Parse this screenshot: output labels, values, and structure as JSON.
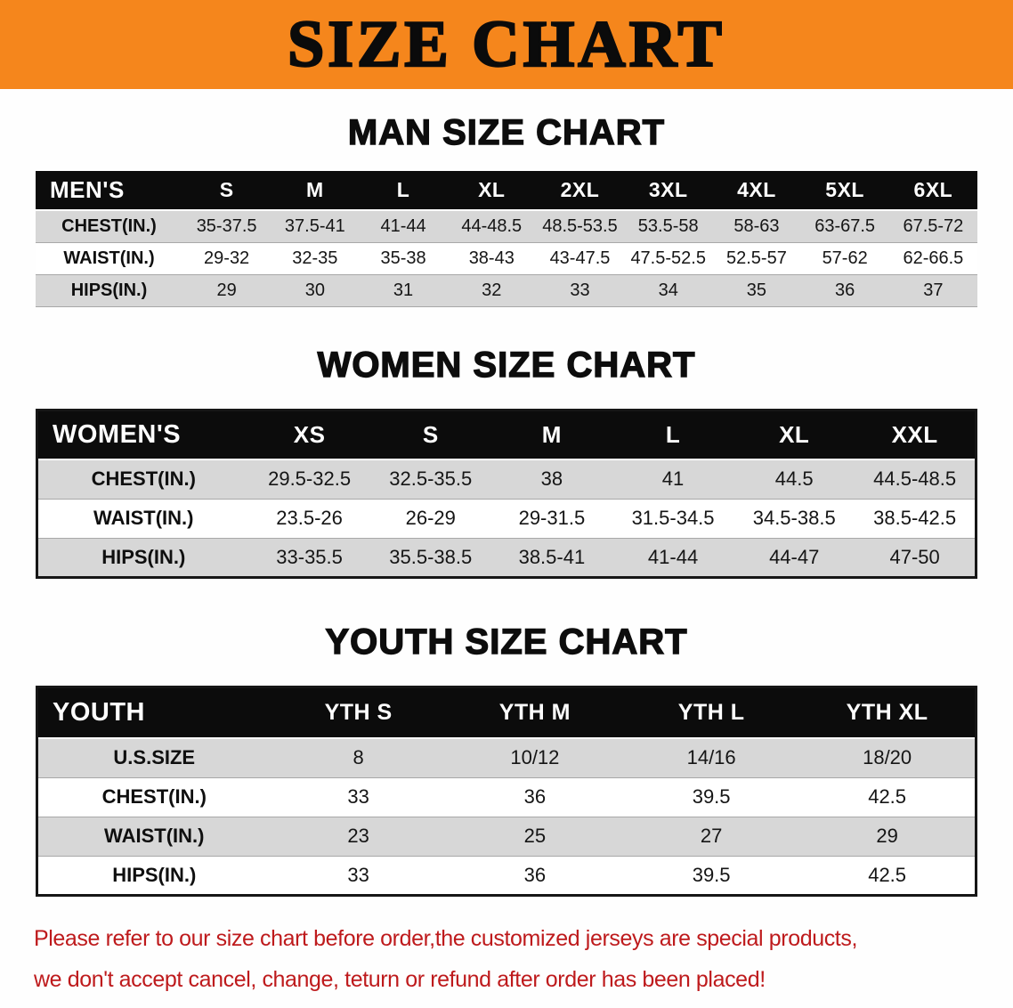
{
  "banner": {
    "title": "SIZE CHART"
  },
  "colors": {
    "banner_bg": "#F5861C",
    "table_header_bg": "#0C0C0C",
    "row_shade": "#D7D7D7",
    "disclaimer_red": "#BE1A1C"
  },
  "sections": {
    "men": {
      "heading": "MAN SIZE CHART"
    },
    "women": {
      "heading": "WOMEN SIZE CHART"
    },
    "youth": {
      "heading": "YOUTH SIZE CHART"
    }
  },
  "tables": {
    "men": {
      "label": "MEN'S",
      "sizes": [
        "S",
        "M",
        "L",
        "XL",
        "2XL",
        "3XL",
        "4XL",
        "5XL",
        "6XL"
      ],
      "rows": [
        {
          "label": "CHEST(IN.)",
          "values": [
            "35-37.5",
            "37.5-41",
            "41-44",
            "44-48.5",
            "48.5-53.5",
            "53.5-58",
            "58-63",
            "63-67.5",
            "67.5-72"
          ]
        },
        {
          "label": "WAIST(IN.)",
          "values": [
            "29-32",
            "32-35",
            "35-38",
            "38-43",
            "43-47.5",
            "47.5-52.5",
            "52.5-57",
            "57-62",
            "62-66.5"
          ]
        },
        {
          "label": "HIPS(IN.)",
          "values": [
            "29",
            "30",
            "31",
            "32",
            "33",
            "34",
            "35",
            "36",
            "37"
          ]
        }
      ]
    },
    "women": {
      "label": "WOMEN'S",
      "sizes": [
        "XS",
        "S",
        "M",
        "L",
        "XL",
        "XXL"
      ],
      "rows": [
        {
          "label": "CHEST(IN.)",
          "values": [
            "29.5-32.5",
            "32.5-35.5",
            "38",
            "41",
            "44.5",
            "44.5-48.5"
          ]
        },
        {
          "label": "WAIST(IN.)",
          "values": [
            "23.5-26",
            "26-29",
            "29-31.5",
            "31.5-34.5",
            "34.5-38.5",
            "38.5-42.5"
          ]
        },
        {
          "label": "HIPS(IN.)",
          "values": [
            "33-35.5",
            "35.5-38.5",
            "38.5-41",
            "41-44",
            "44-47",
            "47-50"
          ]
        }
      ]
    },
    "youth": {
      "label": "YOUTH",
      "sizes": [
        "YTH S",
        "YTH M",
        "YTH L",
        "YTH XL"
      ],
      "rows": [
        {
          "label": "U.S.SIZE",
          "values": [
            "8",
            "10/12",
            "14/16",
            "18/20"
          ]
        },
        {
          "label": "CHEST(IN.)",
          "values": [
            "33",
            "36",
            "39.5",
            "42.5"
          ]
        },
        {
          "label": "WAIST(IN.)",
          "values": [
            "23",
            "25",
            "27",
            "29"
          ]
        },
        {
          "label": "HIPS(IN.)",
          "values": [
            "33",
            "36",
            "39.5",
            "42.5"
          ]
        }
      ]
    }
  },
  "disclaimer": {
    "line1": "Please refer to our size chart before order,the customized jerseys are special products,",
    "line2": "we don't accept cancel, change, teturn or refund after order has been placed!"
  }
}
